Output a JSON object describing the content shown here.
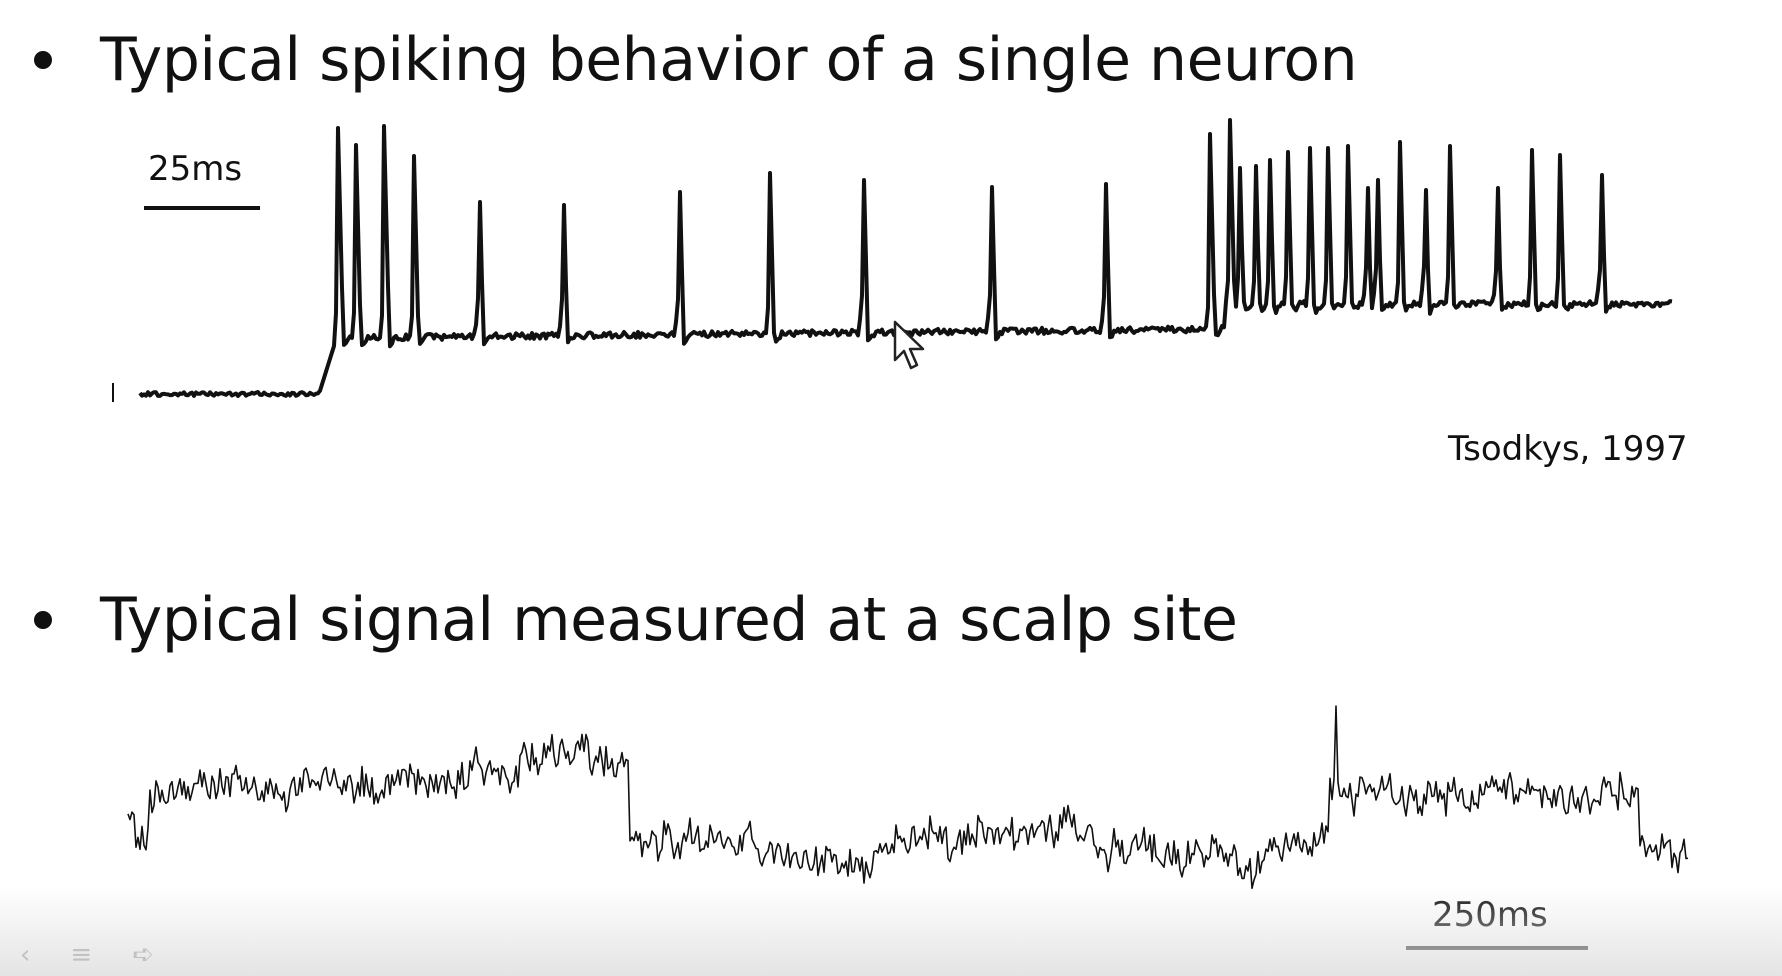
{
  "slide": {
    "bullet1": "Typical spiking behavior of a single neuron",
    "bullet2": "Typical signal measured at a scalp site"
  },
  "spike_trace": {
    "scale_label": "25ms",
    "citation": "Tsodkys, 1997",
    "stimulus_onset_fraction": 0.14,
    "spike_times_fraction": [
      0.138,
      0.152,
      0.171,
      0.194,
      0.234,
      0.29,
      0.366,
      0.424,
      0.487,
      0.573,
      0.648,
      0.718,
      0.733,
      0.744,
      0.756,
      0.767,
      0.779,
      0.792,
      0.806,
      0.818,
      0.831,
      0.842,
      0.858,
      0.874,
      0.892,
      0.924,
      0.946,
      0.966,
      1.0
    ]
  },
  "eeg_trace": {
    "scale_label": "250ms"
  },
  "icons": {
    "cursor": "mouse-pointer-icon",
    "nav_prev": "chevron-left-icon",
    "nav_menu": "menu-icon",
    "nav_next": "arrow-right-icon"
  },
  "controls": {
    "prev": "‹",
    "menu": "≡",
    "next": "➪"
  }
}
